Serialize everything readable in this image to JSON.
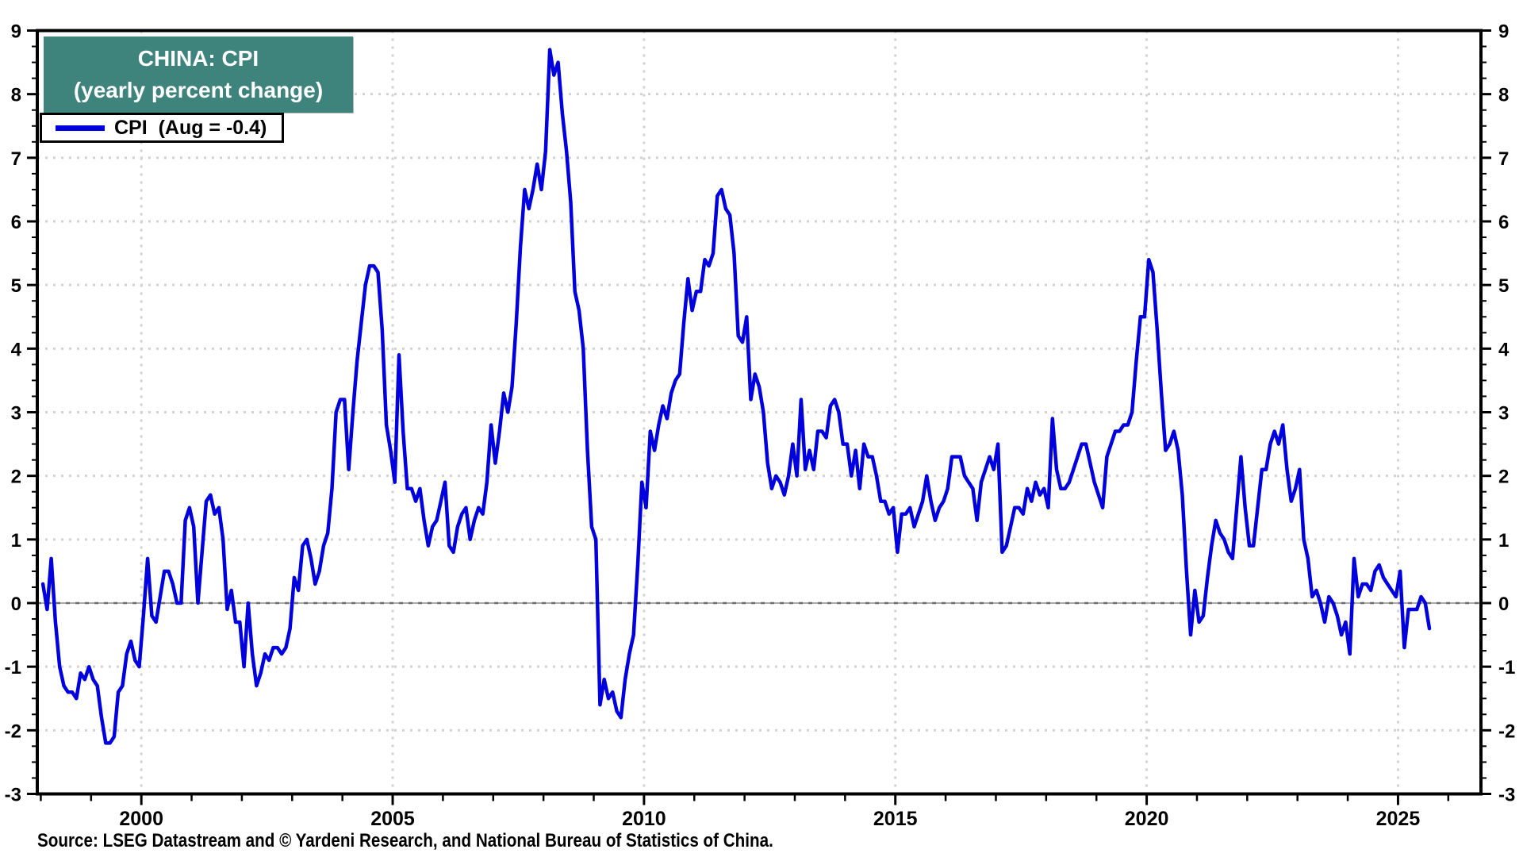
{
  "header": {
    "title_line1": "CHINA: CPI",
    "title_line2": "(yearly percent change)"
  },
  "legend": {
    "label": "CPI  (Aug = -0.4)"
  },
  "footer": {
    "source": "Source: LSEG Datastream and © Yardeni Research, and National Bureau of Statistics of China."
  },
  "colors": {
    "line": "#0101dd",
    "title_bg": "#3f847c",
    "grid": "#d2d2d2",
    "zero_line_base": "#ababab",
    "zero_line_dash": "#6f6f6f",
    "axis": "#000000"
  },
  "chart_data": {
    "type": "line",
    "title": "CHINA: CPI (yearly percent change)",
    "xlabel": "",
    "ylabel": "",
    "ylim": [
      -3,
      9
    ],
    "xlim": [
      1997.93,
      2026.65
    ],
    "grid": "dotted horizontal lines at each integer; dotted vertical lines at 5-year ticks; solid/dashed gray line at zero",
    "legend_position": "top-left",
    "y_tick_labels": [
      "-3",
      "-2",
      "-1",
      "0",
      "1",
      "2",
      "3",
      "4",
      "5",
      "6",
      "7",
      "8",
      "9"
    ],
    "y_major_ticks": [
      -3,
      -2,
      -1,
      0,
      1,
      2,
      3,
      4,
      5,
      6,
      7,
      8,
      9
    ],
    "y_minor_step": 0.25,
    "x_tick_labels": [
      "2000",
      "2005",
      "2010",
      "2015",
      "2020",
      "2025"
    ],
    "x_major_ticks": [
      2000,
      2005,
      2010,
      2015,
      2020,
      2025
    ],
    "x_minor_ticks_years": [
      1998,
      1999,
      2000,
      2001,
      2002,
      2003,
      2004,
      2005,
      2006,
      2007,
      2008,
      2009,
      2010,
      2011,
      2012,
      2013,
      2014,
      2015,
      2016,
      2017,
      2018,
      2019,
      2020,
      2021,
      2022,
      2023,
      2024,
      2025,
      2026
    ],
    "series": [
      {
        "name": "CPI  (Aug = -0.4)",
        "color": "#0101dd",
        "frequency": "monthly",
        "start": "1998-01",
        "end": "2025-08",
        "last_value_note": "Aug = -0.4",
        "data_by_year": [
          {
            "year": 1998,
            "values": [
              0.3,
              -0.1,
              0.7,
              -0.3,
              -1.0,
              -1.3,
              -1.4,
              -1.4,
              -1.5,
              -1.1,
              -1.2,
              -1.0
            ]
          },
          {
            "year": 1999,
            "values": [
              -1.2,
              -1.3,
              -1.8,
              -2.2,
              -2.2,
              -2.1,
              -1.4,
              -1.3,
              -0.8,
              -0.6,
              -0.9,
              -1.0
            ]
          },
          {
            "year": 2000,
            "values": [
              -0.2,
              0.7,
              -0.2,
              -0.3,
              0.1,
              0.5,
              0.5,
              0.3,
              0.0,
              0.0,
              1.3,
              1.5
            ]
          },
          {
            "year": 2001,
            "values": [
              1.2,
              0.0,
              0.8,
              1.6,
              1.7,
              1.4,
              1.5,
              1.0,
              -0.1,
              0.2,
              -0.3,
              -0.3
            ]
          },
          {
            "year": 2002,
            "values": [
              -1.0,
              0.0,
              -0.8,
              -1.3,
              -1.1,
              -0.8,
              -0.9,
              -0.7,
              -0.7,
              -0.8,
              -0.7,
              -0.4
            ]
          },
          {
            "year": 2003,
            "values": [
              0.4,
              0.2,
              0.9,
              1.0,
              0.7,
              0.3,
              0.5,
              0.9,
              1.1,
              1.8,
              3.0,
              3.2
            ]
          },
          {
            "year": 2004,
            "values": [
              3.2,
              2.1,
              3.0,
              3.8,
              4.4,
              5.0,
              5.3,
              5.3,
              5.2,
              4.3,
              2.8,
              2.4
            ]
          },
          {
            "year": 2005,
            "values": [
              1.9,
              3.9,
              2.7,
              1.8,
              1.8,
              1.6,
              1.8,
              1.3,
              0.9,
              1.2,
              1.3,
              1.6
            ]
          },
          {
            "year": 2006,
            "values": [
              1.9,
              0.9,
              0.8,
              1.2,
              1.4,
              1.5,
              1.0,
              1.3,
              1.5,
              1.4,
              1.9,
              2.8
            ]
          },
          {
            "year": 2007,
            "values": [
              2.2,
              2.7,
              3.3,
              3.0,
              3.4,
              4.4,
              5.6,
              6.5,
              6.2,
              6.5,
              6.9,
              6.5
            ]
          },
          {
            "year": 2008,
            "values": [
              7.1,
              8.7,
              8.3,
              8.5,
              7.7,
              7.1,
              6.3,
              4.9,
              4.6,
              4.0,
              2.4,
              1.2
            ]
          },
          {
            "year": 2009,
            "values": [
              1.0,
              -1.6,
              -1.2,
              -1.5,
              -1.4,
              -1.7,
              -1.8,
              -1.2,
              -0.8,
              -0.5,
              0.6,
              1.9
            ]
          },
          {
            "year": 2010,
            "values": [
              1.5,
              2.7,
              2.4,
              2.8,
              3.1,
              2.9,
              3.3,
              3.5,
              3.6,
              4.4,
              5.1,
              4.6
            ]
          },
          {
            "year": 2011,
            "values": [
              4.9,
              4.9,
              5.4,
              5.3,
              5.5,
              6.4,
              6.5,
              6.2,
              6.1,
              5.5,
              4.2,
              4.1
            ]
          },
          {
            "year": 2012,
            "values": [
              4.5,
              3.2,
              3.6,
              3.4,
              3.0,
              2.2,
              1.8,
              2.0,
              1.9,
              1.7,
              2.0,
              2.5
            ]
          },
          {
            "year": 2013,
            "values": [
              2.0,
              3.2,
              2.1,
              2.4,
              2.1,
              2.7,
              2.7,
              2.6,
              3.1,
              3.2,
              3.0,
              2.5
            ]
          },
          {
            "year": 2014,
            "values": [
              2.5,
              2.0,
              2.4,
              1.8,
              2.5,
              2.3,
              2.3,
              2.0,
              1.6,
              1.6,
              1.4,
              1.5
            ]
          },
          {
            "year": 2015,
            "values": [
              0.8,
              1.4,
              1.4,
              1.5,
              1.2,
              1.4,
              1.6,
              2.0,
              1.6,
              1.3,
              1.5,
              1.6
            ]
          },
          {
            "year": 2016,
            "values": [
              1.8,
              2.3,
              2.3,
              2.3,
              2.0,
              1.9,
              1.8,
              1.3,
              1.9,
              2.1,
              2.3,
              2.1
            ]
          },
          {
            "year": 2017,
            "values": [
              2.5,
              0.8,
              0.9,
              1.2,
              1.5,
              1.5,
              1.4,
              1.8,
              1.6,
              1.9,
              1.7,
              1.8
            ]
          },
          {
            "year": 2018,
            "values": [
              1.5,
              2.9,
              2.1,
              1.8,
              1.8,
              1.9,
              2.1,
              2.3,
              2.5,
              2.5,
              2.2,
              1.9
            ]
          },
          {
            "year": 2019,
            "values": [
              1.7,
              1.5,
              2.3,
              2.5,
              2.7,
              2.7,
              2.8,
              2.8,
              3.0,
              3.8,
              4.5,
              4.5
            ]
          },
          {
            "year": 2020,
            "values": [
              5.4,
              5.2,
              4.3,
              3.3,
              2.4,
              2.5,
              2.7,
              2.4,
              1.7,
              0.5,
              -0.5,
              0.2
            ]
          },
          {
            "year": 2021,
            "values": [
              -0.3,
              -0.2,
              0.4,
              0.9,
              1.3,
              1.1,
              1.0,
              0.8,
              0.7,
              1.5,
              2.3,
              1.5
            ]
          },
          {
            "year": 2022,
            "values": [
              0.9,
              0.9,
              1.5,
              2.1,
              2.1,
              2.5,
              2.7,
              2.5,
              2.8,
              2.1,
              1.6,
              1.8
            ]
          },
          {
            "year": 2023,
            "values": [
              2.1,
              1.0,
              0.7,
              0.1,
              0.2,
              0.0,
              -0.3,
              0.1,
              0.0,
              -0.2,
              -0.5,
              -0.3
            ]
          },
          {
            "year": 2024,
            "values": [
              -0.8,
              0.7,
              0.1,
              0.3,
              0.3,
              0.2,
              0.5,
              0.6,
              0.4,
              0.3,
              0.2,
              0.1
            ]
          },
          {
            "year": 2025,
            "values": [
              0.5,
              -0.7,
              -0.1,
              -0.1,
              -0.1,
              0.1,
              0.0,
              -0.4
            ]
          }
        ]
      }
    ]
  }
}
